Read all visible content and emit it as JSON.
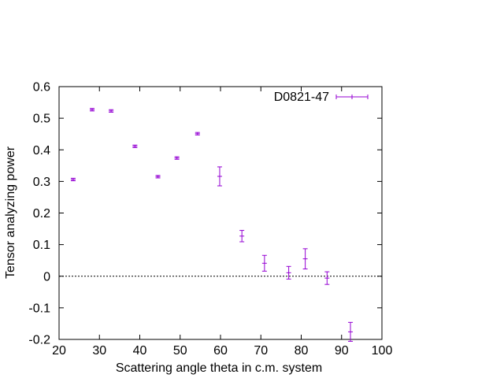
{
  "chart_data": {
    "type": "scatter",
    "title": "",
    "xlabel": "Scattering angle theta in c.m. system",
    "ylabel": "Tensor analyzing power",
    "xlim": [
      20,
      100
    ],
    "ylim": [
      -0.2,
      0.6
    ],
    "xticks": [
      20,
      30,
      40,
      50,
      60,
      70,
      80,
      90,
      100
    ],
    "xtick_labels": [
      "20",
      "30",
      "40",
      "50",
      "60",
      "70",
      "80",
      "90",
      "100"
    ],
    "yticks": [
      -0.2,
      -0.1,
      0,
      0.1,
      0.2,
      0.3,
      0.4,
      0.5,
      0.6
    ],
    "ytick_labels": [
      "-0.2",
      "-0.1",
      "0",
      "0.1",
      "0.2",
      "0.3",
      "0.4",
      "0.5",
      "0.6"
    ],
    "grid": false,
    "zero_line": true,
    "legend_position": "top-right",
    "series": [
      {
        "name": "D0821-47",
        "color": "#9400d3",
        "points": [
          {
            "x": 23.5,
            "y": 0.306,
            "err": 0.004
          },
          {
            "x": 28.2,
            "y": 0.527,
            "err": 0.004
          },
          {
            "x": 32.9,
            "y": 0.523,
            "err": 0.004
          },
          {
            "x": 38.8,
            "y": 0.411,
            "err": 0.004
          },
          {
            "x": 44.5,
            "y": 0.315,
            "err": 0.004
          },
          {
            "x": 49.2,
            "y": 0.374,
            "err": 0.004
          },
          {
            "x": 54.3,
            "y": 0.451,
            "err": 0.004
          },
          {
            "x": 59.8,
            "y": 0.316,
            "err": 0.03
          },
          {
            "x": 65.3,
            "y": 0.127,
            "err": 0.018
          },
          {
            "x": 70.9,
            "y": 0.041,
            "err": 0.025
          },
          {
            "x": 76.9,
            "y": 0.011,
            "err": 0.02
          },
          {
            "x": 81.0,
            "y": 0.055,
            "err": 0.032
          },
          {
            "x": 86.4,
            "y": -0.006,
            "err": 0.02
          },
          {
            "x": 92.2,
            "y": -0.176,
            "err": 0.03
          }
        ]
      }
    ]
  }
}
